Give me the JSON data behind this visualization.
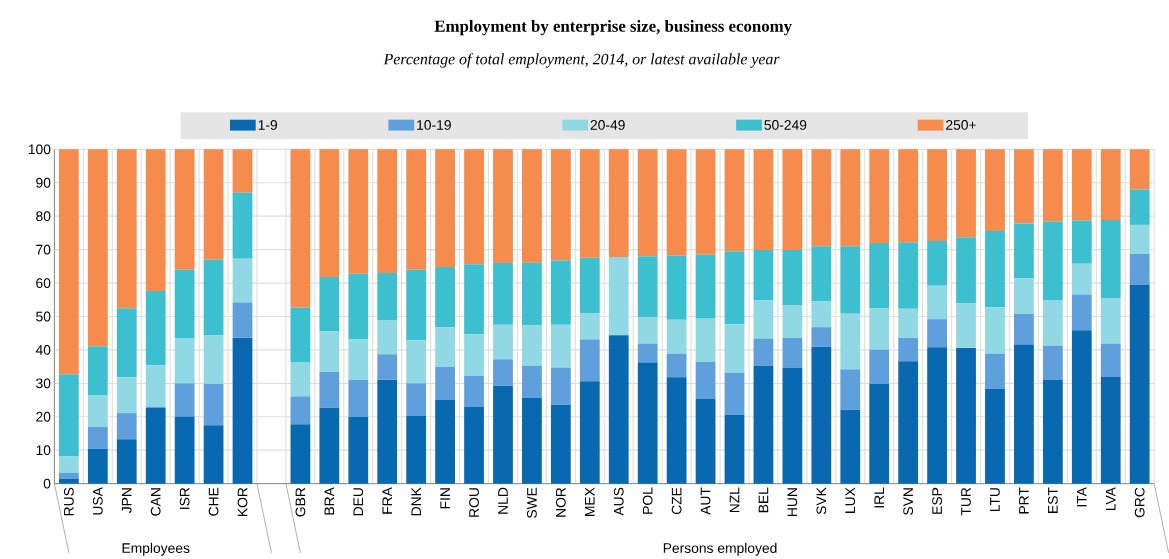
{
  "chart_data": {
    "type": "bar",
    "stacked": true,
    "title": "Employment by enterprise size, business economy",
    "subtitle": "Percentage of total employment, 2014, or latest available year",
    "categories": [
      "RUS",
      "USA",
      "JPN",
      "CAN",
      "ISR",
      "CHE",
      "KOR",
      null,
      "GBR",
      "BRA",
      "DEU",
      "FRA",
      "DNK",
      "FIN",
      "ROU",
      "NLD",
      "SWE",
      "NOR",
      "MEX",
      "AUS",
      "POL",
      "CZE",
      "AUT",
      "NZL",
      "BEL",
      "HUN",
      "SVK",
      "LUX",
      "IRL",
      "SVN",
      "ESP",
      "TUR",
      "LTU",
      "PRT",
      "EST",
      "ITA",
      "LVA",
      "GRC"
    ],
    "series": [
      {
        "name": "1-9",
        "color": "#0868b0",
        "values": [
          1.5,
          10.4,
          13.3,
          22.6,
          20.1,
          17.5,
          43.6,
          null,
          17.8,
          22.7,
          19.9,
          31.1,
          20.4,
          25,
          23.1,
          29.3,
          25.6,
          23.6,
          30.6,
          44.4,
          36.2,
          31.8,
          25.5,
          20.6,
          35.2,
          34.6,
          40.9,
          22.1,
          29.8,
          36.6,
          40.8,
          40.6,
          28.3,
          41.6,
          31,
          45.9,
          31.9,
          59.4
        ]
      },
      {
        "name": "10-19",
        "color": "#5e9fdc",
        "values": [
          1.7,
          6.6,
          7.8,
          0.4,
          9.9,
          12.3,
          10.6,
          null,
          8.3,
          10.7,
          11.1,
          7.6,
          9.6,
          9.9,
          9.1,
          7.9,
          9.6,
          11.1,
          12.5,
          0,
          5.7,
          7.1,
          11,
          12.6,
          8.2,
          9,
          5.9,
          12.1,
          10.3,
          7,
          8.4,
          0,
          10.6,
          9.2,
          10.3,
          10.7,
          10,
          9.3
        ]
      },
      {
        "name": "20-49",
        "color": "#8fd8e4",
        "values": [
          4.9,
          9.5,
          10.7,
          12.4,
          13.6,
          14.5,
          13.1,
          null,
          10.3,
          12.2,
          12.1,
          10.1,
          12.9,
          11.8,
          12.4,
          10.3,
          12.1,
          12.8,
          7.9,
          23.4,
          7.8,
          10.1,
          12.8,
          14.5,
          11.5,
          9.7,
          7.8,
          16.6,
          12.4,
          8.7,
          10,
          13.3,
          13.9,
          10.7,
          13.6,
          9.2,
          13.6,
          8.7
        ]
      },
      {
        "name": "50-249",
        "color": "#3cc0d0",
        "values": [
          24.6,
          14.6,
          20.7,
          22.2,
          20.4,
          22.7,
          19.7,
          null,
          16.3,
          16.2,
          19.7,
          14.2,
          21.1,
          18.1,
          21,
          18.5,
          18.8,
          19.3,
          16.6,
          0,
          18.3,
          19.2,
          19.2,
          21.8,
          15,
          16.6,
          16.4,
          20.2,
          19.5,
          19.9,
          13.4,
          19.8,
          22.8,
          16.3,
          23.5,
          12.9,
          23.4,
          10.6
        ]
      },
      {
        "name": "250+",
        "color": "#f58b4c",
        "values": [
          67.3,
          58.9,
          47.5,
          42.4,
          36,
          33,
          13,
          null,
          47.3,
          38.2,
          37.2,
          37,
          36,
          35.2,
          34.4,
          34,
          33.9,
          33.2,
          32.4,
          32.2,
          32,
          31.8,
          31.5,
          30.5,
          30.1,
          30.1,
          29,
          29,
          28,
          27.8,
          27.4,
          26.3,
          24.4,
          22.2,
          21.6,
          21.3,
          21.1,
          12
        ]
      }
    ],
    "ylim": [
      0,
      100
    ],
    "yticks": [
      0,
      10,
      20,
      30,
      40,
      50,
      60,
      70,
      80,
      90,
      100
    ],
    "grid": true,
    "legend": "top",
    "annotations": [
      "Employees",
      "Persons employed"
    ]
  }
}
